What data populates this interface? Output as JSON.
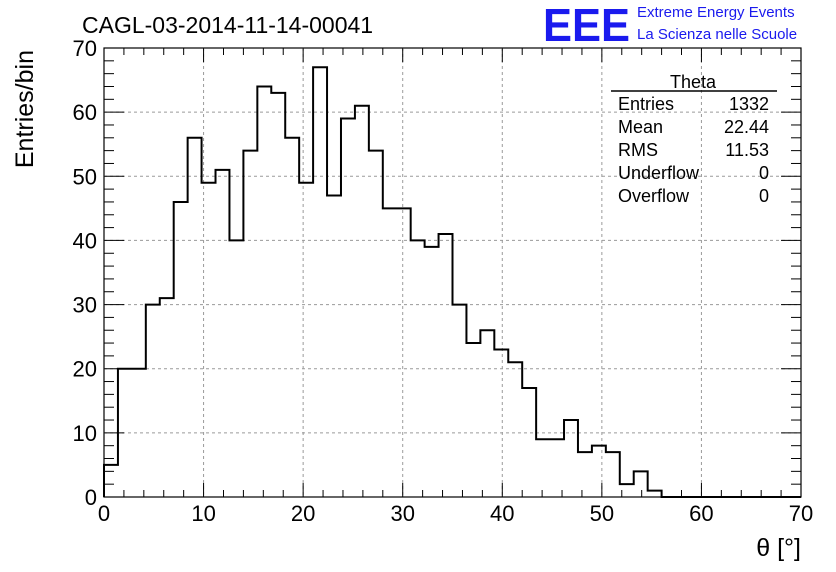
{
  "header": {
    "run_title": "CAGL-03-2014-11-14-00041",
    "logo_mark": "EEE",
    "logo_line1": "Extreme Energy Events",
    "logo_line2": "La Scienza nelle Scuole"
  },
  "stats": {
    "name": "Theta",
    "rows": [
      {
        "label": "Entries",
        "value": "1332"
      },
      {
        "label": "Mean",
        "value": "22.44"
      },
      {
        "label": "RMS",
        "value": "11.53"
      },
      {
        "label": "Underflow",
        "value": "0"
      },
      {
        "label": "Overflow",
        "value": "0"
      }
    ]
  },
  "colors": {
    "line": "#000000",
    "grid": "#9a9a9a",
    "logo": "#1a1aee"
  },
  "chart_data": {
    "type": "bar",
    "title": "CAGL-03-2014-11-14-00041",
    "xlabel": "θ [°]",
    "ylabel": "Entries/bin",
    "xlim": [
      0,
      70
    ],
    "ylim": [
      0,
      70
    ],
    "grid": true,
    "bin_width": 1.4,
    "bin_start": 0,
    "values": [
      5,
      20,
      20,
      30,
      31,
      46,
      56,
      49,
      51,
      40,
      54,
      64,
      63,
      56,
      49,
      67,
      47,
      59,
      61,
      54,
      45,
      45,
      40,
      39,
      41,
      30,
      24,
      26,
      23,
      21,
      17,
      9,
      9,
      12,
      7,
      8,
      7,
      2,
      4,
      1,
      0,
      0,
      0,
      0,
      0,
      0,
      0,
      0,
      0,
      0
    ],
    "x_ticks": [
      0,
      10,
      20,
      30,
      40,
      50,
      60,
      70
    ],
    "y_ticks": [
      0,
      10,
      20,
      30,
      40,
      50,
      60,
      70
    ]
  }
}
